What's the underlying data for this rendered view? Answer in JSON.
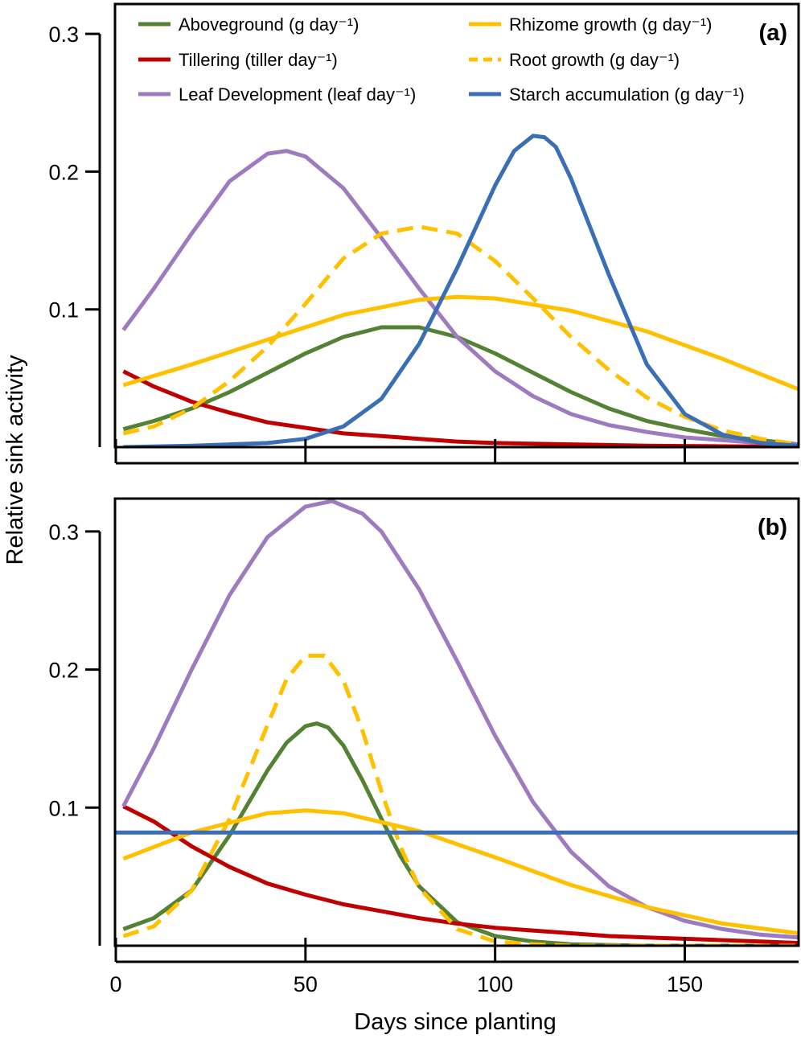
{
  "chart_data": [
    {
      "type": "line",
      "panel_label": "(a)",
      "xlabel": "Days since planting",
      "ylabel": "Relative sink activity",
      "xlim": [
        0,
        180
      ],
      "ylim": [
        0,
        0.32
      ],
      "xticks": [
        0,
        50,
        100,
        150
      ],
      "yticks": [
        0.1,
        0.2,
        0.3
      ],
      "ytick_labels": [
        "0.1",
        "0.2",
        "0.3"
      ],
      "legend_position": "top",
      "series": [
        {
          "name": "Aboveground (g day⁻¹)",
          "color": "#548235",
          "dash": "solid",
          "x": [
            2,
            10,
            20,
            30,
            40,
            50,
            60,
            70,
            80,
            90,
            100,
            110,
            120,
            130,
            140,
            150,
            160,
            170,
            180
          ],
          "y": [
            0.013,
            0.019,
            0.028,
            0.04,
            0.054,
            0.068,
            0.08,
            0.087,
            0.087,
            0.08,
            0.068,
            0.054,
            0.04,
            0.028,
            0.019,
            0.013,
            0.008,
            0.005,
            0.002
          ]
        },
        {
          "name": "Tillering (tiller day⁻¹)",
          "color": "#c00000",
          "dash": "solid",
          "x": [
            2,
            10,
            20,
            30,
            40,
            50,
            60,
            70,
            80,
            90,
            100,
            110,
            120,
            130,
            140,
            150,
            160,
            170,
            180
          ],
          "y": [
            0.055,
            0.044,
            0.033,
            0.025,
            0.018,
            0.014,
            0.01,
            0.008,
            0.006,
            0.004,
            0.003,
            0.0025,
            0.002,
            0.0015,
            0.001,
            0.0008,
            0.0006,
            0.0004,
            0.0003
          ]
        },
        {
          "name": "Leaf Development (leaf day⁻¹)",
          "color": "#9e7bbf",
          "dash": "solid",
          "x": [
            2,
            10,
            20,
            30,
            40,
            45,
            50,
            60,
            70,
            80,
            90,
            100,
            110,
            120,
            130,
            140,
            150,
            160,
            170,
            180
          ],
          "y": [
            0.085,
            0.115,
            0.155,
            0.193,
            0.213,
            0.215,
            0.211,
            0.188,
            0.152,
            0.115,
            0.08,
            0.055,
            0.037,
            0.024,
            0.016,
            0.011,
            0.007,
            0.005,
            0.003,
            0.002
          ]
        },
        {
          "name": "Rhizome  growth (g day⁻¹)",
          "color": "#ffc000",
          "dash": "solid",
          "x": [
            2,
            20,
            40,
            60,
            80,
            90,
            100,
            120,
            140,
            160,
            180
          ],
          "y": [
            0.045,
            0.06,
            0.078,
            0.096,
            0.107,
            0.109,
            0.108,
            0.099,
            0.084,
            0.064,
            0.042
          ]
        },
        {
          "name": "Root growth (g day⁻¹)",
          "color": "#ffc000",
          "dash": "dashed",
          "x": [
            2,
            10,
            20,
            30,
            40,
            50,
            60,
            70,
            80,
            90,
            100,
            110,
            120,
            130,
            140,
            150,
            160,
            170,
            180
          ],
          "y": [
            0.01,
            0.015,
            0.028,
            0.048,
            0.073,
            0.104,
            0.137,
            0.155,
            0.16,
            0.155,
            0.135,
            0.108,
            0.08,
            0.056,
            0.036,
            0.022,
            0.012,
            0.006,
            0.002
          ]
        },
        {
          "name": "Starch accumulation (g day⁻¹)",
          "color": "#3a6fb5",
          "dash": "solid",
          "x": [
            2,
            20,
            40,
            50,
            60,
            70,
            80,
            90,
            100,
            105,
            110,
            113,
            116,
            120,
            130,
            140,
            150,
            160,
            170,
            180
          ],
          "y": [
            0.0,
            0.001,
            0.003,
            0.006,
            0.015,
            0.035,
            0.075,
            0.13,
            0.19,
            0.215,
            0.226,
            0.225,
            0.218,
            0.195,
            0.125,
            0.06,
            0.024,
            0.009,
            0.003,
            0.001
          ]
        }
      ]
    },
    {
      "type": "line",
      "panel_label": "(b)",
      "xlabel": "Days since planting",
      "ylabel": "Relative sink activity",
      "xlim": [
        0,
        180
      ],
      "ylim": [
        0,
        0.325
      ],
      "xticks": [
        0,
        50,
        100,
        150
      ],
      "xtick_labels": [
        "0",
        "50",
        "100",
        "150"
      ],
      "yticks": [
        0.1,
        0.2,
        0.3
      ],
      "ytick_labels": [
        "0.1",
        "0.2",
        "0.3"
      ],
      "series": [
        {
          "color": "#548235",
          "dash": "solid",
          "x": [
            2,
            10,
            20,
            30,
            40,
            45,
            50,
            53,
            56,
            60,
            65,
            70,
            75,
            80,
            90,
            100,
            110,
            120,
            140,
            160,
            180
          ],
          "y": [
            0.012,
            0.02,
            0.04,
            0.08,
            0.127,
            0.147,
            0.159,
            0.161,
            0.158,
            0.145,
            0.12,
            0.092,
            0.065,
            0.043,
            0.017,
            0.007,
            0.003,
            0.001,
            0.0,
            0.0,
            0.0
          ]
        },
        {
          "name": "Tillering",
          "color": "#c00000",
          "dash": "solid",
          "x": [
            2,
            10,
            20,
            30,
            40,
            50,
            60,
            70,
            80,
            90,
            100,
            110,
            120,
            130,
            140,
            150,
            160,
            170,
            180
          ],
          "y": [
            0.101,
            0.09,
            0.072,
            0.057,
            0.045,
            0.037,
            0.03,
            0.025,
            0.02,
            0.016,
            0.013,
            0.011,
            0.009,
            0.007,
            0.006,
            0.005,
            0.004,
            0.003,
            0.002
          ]
        },
        {
          "color": "#9e7bbf",
          "dash": "solid",
          "x": [
            2,
            10,
            20,
            30,
            40,
            50,
            57,
            65,
            70,
            80,
            90,
            100,
            110,
            120,
            130,
            140,
            150,
            160,
            170,
            180
          ],
          "y": [
            0.101,
            0.143,
            0.2,
            0.254,
            0.296,
            0.318,
            0.322,
            0.313,
            0.3,
            0.258,
            0.206,
            0.152,
            0.104,
            0.068,
            0.043,
            0.028,
            0.018,
            0.012,
            0.008,
            0.006
          ]
        },
        {
          "color": "#ffc000",
          "dash": "solid",
          "x": [
            2,
            20,
            40,
            50,
            60,
            80,
            100,
            120,
            140,
            160,
            180
          ],
          "y": [
            0.063,
            0.082,
            0.096,
            0.098,
            0.096,
            0.083,
            0.064,
            0.044,
            0.028,
            0.016,
            0.009
          ]
        },
        {
          "color": "#ffc000",
          "dash": "dashed",
          "x": [
            2,
            10,
            20,
            30,
            40,
            45,
            50,
            55,
            60,
            65,
            70,
            75,
            80,
            90,
            100,
            110,
            120,
            140,
            160,
            180
          ],
          "y": [
            0.007,
            0.014,
            0.04,
            0.092,
            0.16,
            0.193,
            0.21,
            0.21,
            0.192,
            0.156,
            0.112,
            0.072,
            0.042,
            0.012,
            0.003,
            0.001,
            0.0,
            0.0,
            0.0,
            0.0
          ]
        },
        {
          "color": "#3a6fb5",
          "dash": "solid",
          "x": [
            0,
            180
          ],
          "y": [
            0.082,
            0.082
          ]
        }
      ]
    }
  ]
}
